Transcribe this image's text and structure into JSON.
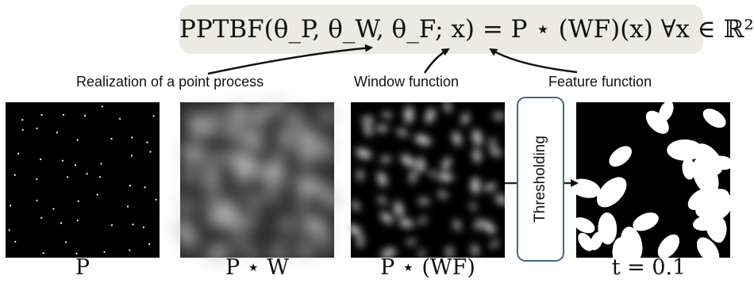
{
  "formula": "PPTBF(θ_P, θ_W, θ_F; x) = P ⋆ (WF)(x)  ∀x ∈ ℝ²",
  "annotations": {
    "point_process": "Realization of a point process",
    "window": "Window function",
    "feature": "Feature function"
  },
  "process_step": "Thresholding",
  "captions": {
    "p": "P",
    "pw": "P ⋆ W",
    "pwf": "P ⋆ (WF)",
    "t": "t = 0.1"
  },
  "colors": {
    "formula_background": "#ebebe2",
    "threshold_border": "#4a6484",
    "panel_background": "#000000"
  }
}
